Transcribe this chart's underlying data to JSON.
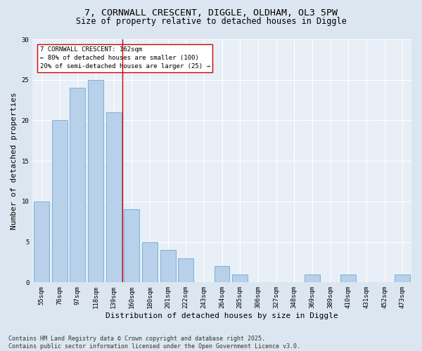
{
  "title_line1": "7, CORNWALL CRESCENT, DIGGLE, OLDHAM, OL3 5PW",
  "title_line2": "Size of property relative to detached houses in Diggle",
  "categories": [
    "55sqm",
    "76sqm",
    "97sqm",
    "118sqm",
    "139sqm",
    "160sqm",
    "180sqm",
    "201sqm",
    "222sqm",
    "243sqm",
    "264sqm",
    "285sqm",
    "306sqm",
    "327sqm",
    "348sqm",
    "369sqm",
    "389sqm",
    "410sqm",
    "431sqm",
    "452sqm",
    "473sqm"
  ],
  "values": [
    10,
    20,
    24,
    25,
    21,
    9,
    5,
    4,
    3,
    0,
    2,
    1,
    0,
    0,
    0,
    1,
    0,
    1,
    0,
    0,
    1
  ],
  "bar_color": "#b8d0ea",
  "bar_edgecolor": "#6aaad4",
  "xlabel": "Distribution of detached houses by size in Diggle",
  "ylabel": "Number of detached properties",
  "ylim": [
    0,
    30
  ],
  "vline_index": 5,
  "vline_color": "#cc0000",
  "annotation_text": "7 CORNWALL CRESCENT: 162sqm\n← 80% of detached houses are smaller (100)\n20% of semi-detached houses are larger (25) →",
  "annotation_box_edgecolor": "#cc0000",
  "footer_line1": "Contains HM Land Registry data © Crown copyright and database right 2025.",
  "footer_line2": "Contains public sector information licensed under the Open Government Licence v3.0.",
  "bg_color": "#dce6f0",
  "plot_bg_color": "#e8eff7",
  "grid_color": "#ffffff",
  "title_fontsize": 9.5,
  "subtitle_fontsize": 8.5,
  "tick_fontsize": 6.5,
  "label_fontsize": 8,
  "footer_fontsize": 6,
  "annotation_fontsize": 6.5
}
